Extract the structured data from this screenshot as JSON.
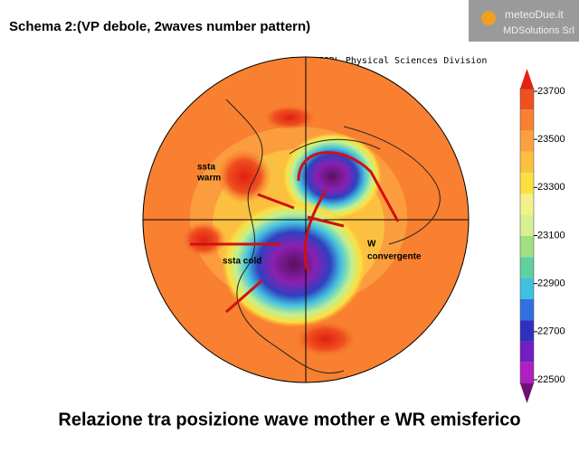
{
  "header": {
    "title": "Schema 2:(VP   debole, 2waves number pattern)"
  },
  "logo": {
    "name": "meteoDue.it",
    "company": "MDSolutions Srl"
  },
  "map": {
    "credit": "NOAA/ESRL Physical Sciences Division",
    "annotations": [
      "ssta",
      "warm",
      "ssta cold",
      "W",
      "convergente"
    ]
  },
  "colorbar": {
    "lim": [
      22500,
      23700
    ],
    "ticks": [
      22500,
      22700,
      22900,
      23100,
      23300,
      23500,
      23700
    ],
    "colors": [
      "#e82010",
      "#f05020",
      "#f88030",
      "#fba040",
      "#fcc040",
      "#fce040",
      "#f4f08a",
      "#d8f090",
      "#a0e080",
      "#60d0a0",
      "#40c0e0",
      "#3070e0",
      "#3030c0",
      "#7020c0",
      "#b020c0",
      "#701070"
    ]
  },
  "caption": "Relazione tra posizione wave mother e WR emisferico"
}
